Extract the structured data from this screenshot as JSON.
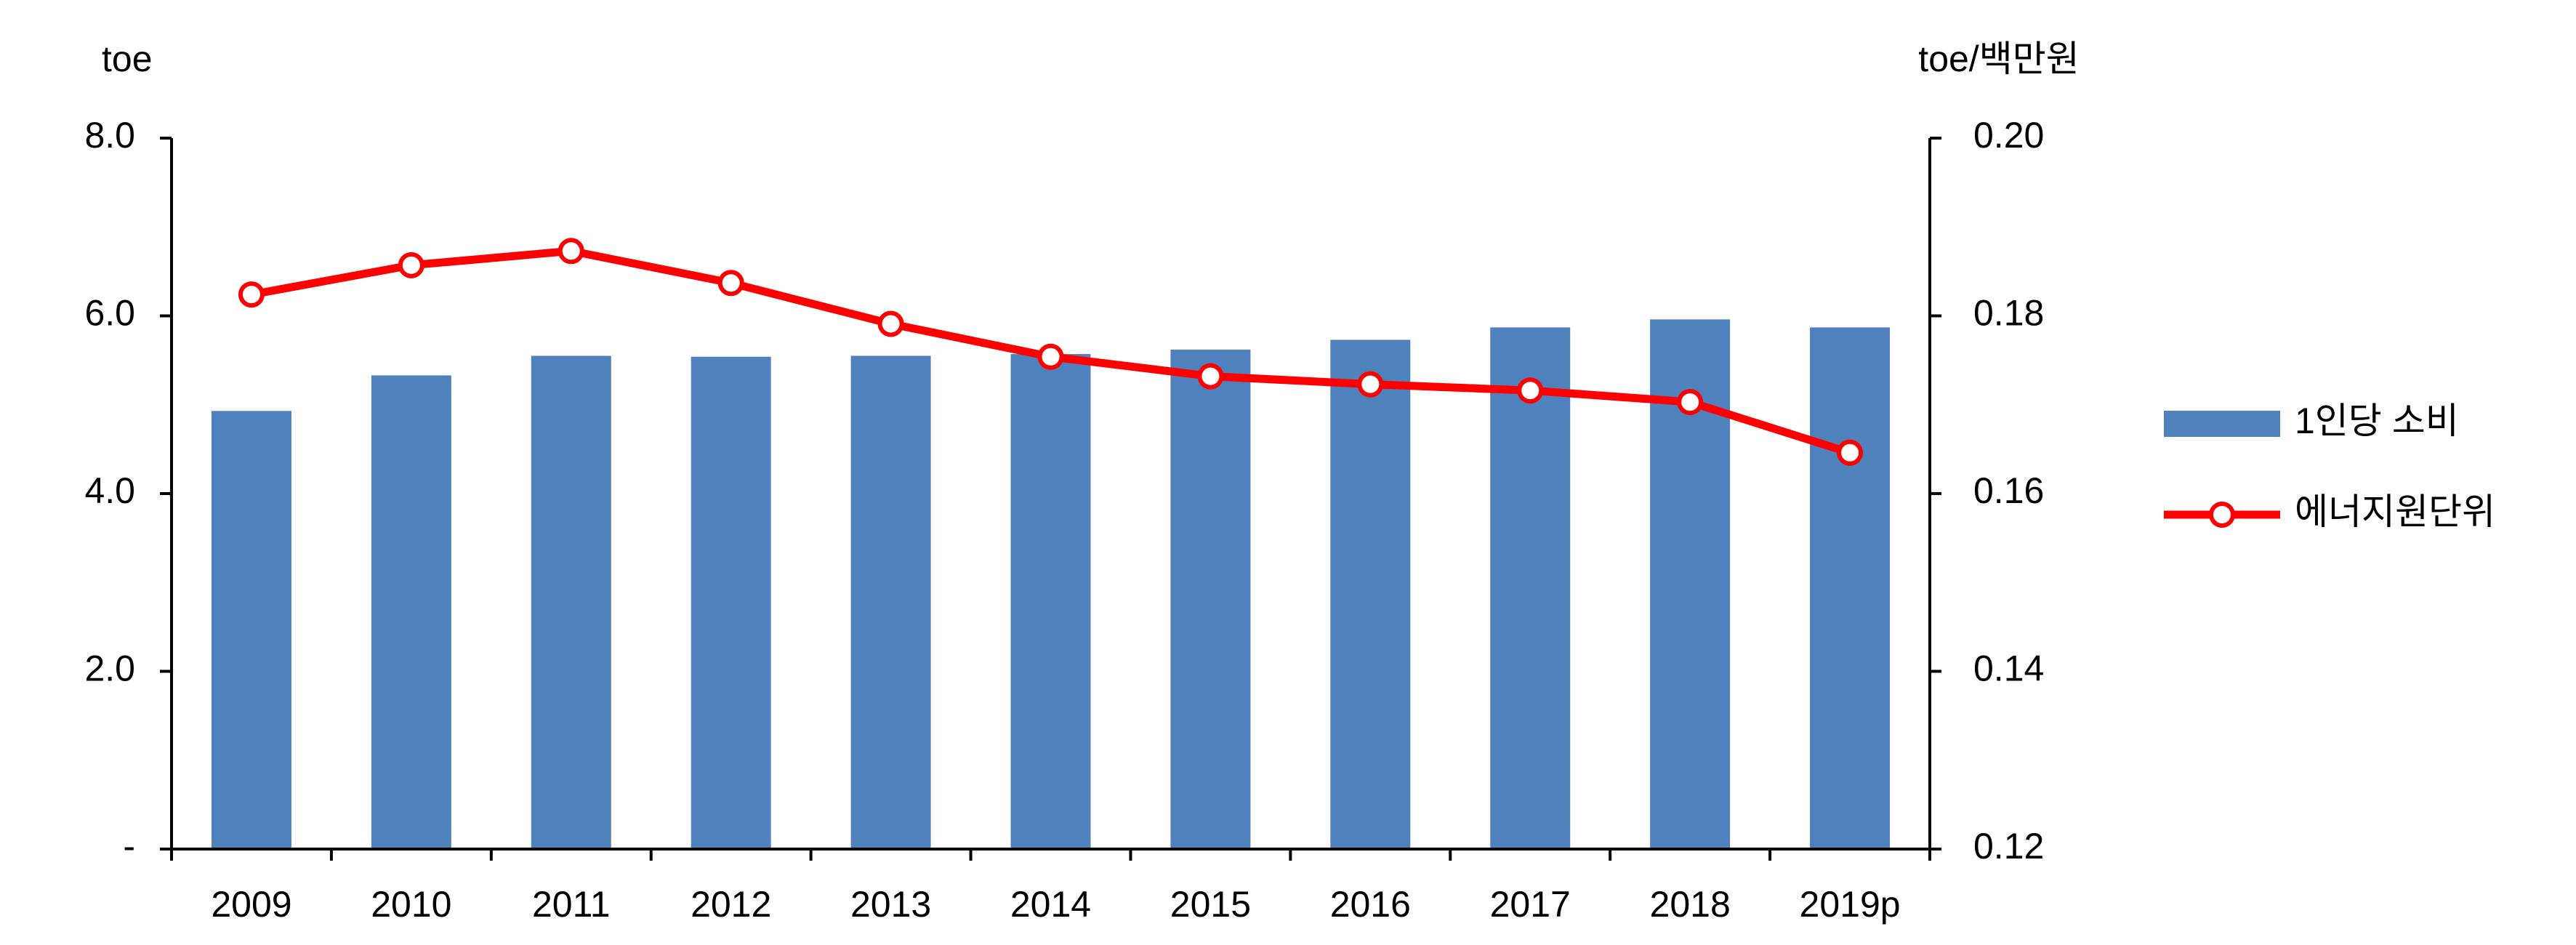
{
  "chart_data": {
    "type": "bar_line",
    "ylabel": "toe",
    "y2label": "toe/백만원",
    "categories": [
      "2009",
      "2010",
      "2011",
      "2012",
      "2013",
      "2014",
      "2015",
      "2016",
      "2017",
      "2018",
      "2019p"
    ],
    "series": [
      {
        "name": "1인당 소비",
        "type": "bar",
        "color": "#4f81bd",
        "values": [
          4.93,
          5.33,
          5.55,
          5.54,
          5.55,
          5.57,
          5.62,
          5.73,
          5.87,
          5.96,
          5.87
        ]
      },
      {
        "name": "에너지원단위",
        "type": "line",
        "axis": "y2",
        "color": "#ff0000",
        "values": [
          0.1824,
          0.1857,
          0.1873,
          0.1837,
          0.1791,
          0.1754,
          0.1732,
          0.1723,
          0.1716,
          0.1703,
          0.1646
        ]
      }
    ],
    "ylim": [
      0,
      8
    ],
    "yticks": [
      {
        "value": 0,
        "label": "-"
      },
      {
        "value": 2,
        "label": "2.0"
      },
      {
        "value": 4,
        "label": "4.0"
      },
      {
        "value": 6,
        "label": "6.0"
      },
      {
        "value": 8,
        "label": "8.0"
      }
    ],
    "y2lim": [
      0.12,
      0.2
    ],
    "y2ticks": [
      0.12,
      0.14,
      0.16,
      0.18,
      {
        "value": 0.2,
        "label": "0.20"
      }
    ],
    "legend": "right"
  }
}
